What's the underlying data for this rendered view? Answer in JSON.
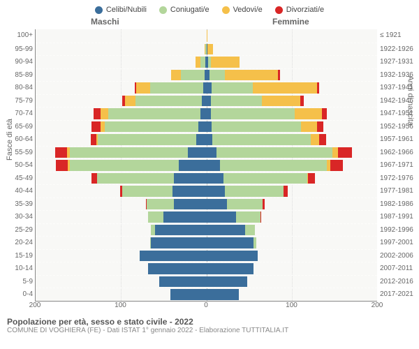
{
  "legend": [
    {
      "label": "Celibi/Nubili",
      "color": "#3b6e9b"
    },
    {
      "label": "Coniugati/e",
      "color": "#b3d69b"
    },
    {
      "label": "Vedovi/e",
      "color": "#f5c04a"
    },
    {
      "label": "Divorziati/e",
      "color": "#d92626"
    }
  ],
  "headers": {
    "male": "Maschi",
    "female": "Femmine"
  },
  "axis": {
    "left_title": "Fasce di età",
    "right_title": "Anni di nascita",
    "xmax": 200,
    "xticks": [
      200,
      100,
      0,
      100,
      200
    ],
    "xtick_positions": [
      0,
      25,
      50,
      75,
      100
    ]
  },
  "colors": {
    "celibi": "#3b6e9b",
    "coniugati": "#b3d69b",
    "vedovi": "#f5c04a",
    "divorziati": "#d92626",
    "plot_bg": "#f8f8f6"
  },
  "rows": [
    {
      "age": "100+",
      "birth": "≤ 1921",
      "m": {
        "c": 0,
        "co": 0,
        "v": 0,
        "d": 0
      },
      "f": {
        "c": 0,
        "co": 0,
        "v": 1,
        "d": 0
      }
    },
    {
      "age": "95-99",
      "birth": "1922-1926",
      "m": {
        "c": 0,
        "co": 1,
        "v": 1,
        "d": 0
      },
      "f": {
        "c": 1,
        "co": 0,
        "v": 7,
        "d": 0
      }
    },
    {
      "age": "90-94",
      "birth": "1927-1931",
      "m": {
        "c": 1,
        "co": 6,
        "v": 6,
        "d": 0
      },
      "f": {
        "c": 2,
        "co": 3,
        "v": 34,
        "d": 0
      }
    },
    {
      "age": "85-89",
      "birth": "1932-1936",
      "m": {
        "c": 2,
        "co": 28,
        "v": 11,
        "d": 0
      },
      "f": {
        "c": 4,
        "co": 18,
        "v": 62,
        "d": 2
      }
    },
    {
      "age": "80-84",
      "birth": "1937-1941",
      "m": {
        "c": 4,
        "co": 62,
        "v": 16,
        "d": 2
      },
      "f": {
        "c": 6,
        "co": 48,
        "v": 75,
        "d": 3
      }
    },
    {
      "age": "75-79",
      "birth": "1942-1946",
      "m": {
        "c": 5,
        "co": 78,
        "v": 12,
        "d": 3
      },
      "f": {
        "c": 5,
        "co": 60,
        "v": 45,
        "d": 4
      }
    },
    {
      "age": "70-74",
      "birth": "1947-1951",
      "m": {
        "c": 7,
        "co": 108,
        "v": 9,
        "d": 8
      },
      "f": {
        "c": 5,
        "co": 98,
        "v": 32,
        "d": 6
      }
    },
    {
      "age": "65-69",
      "birth": "1952-1956",
      "m": {
        "c": 9,
        "co": 110,
        "v": 5,
        "d": 10
      },
      "f": {
        "c": 6,
        "co": 105,
        "v": 18,
        "d": 8
      }
    },
    {
      "age": "60-64",
      "birth": "1957-1961",
      "m": {
        "c": 12,
        "co": 115,
        "v": 2,
        "d": 6
      },
      "f": {
        "c": 7,
        "co": 115,
        "v": 10,
        "d": 8
      }
    },
    {
      "age": "55-59",
      "birth": "1962-1966",
      "m": {
        "c": 22,
        "co": 138,
        "v": 3,
        "d": 14
      },
      "f": {
        "c": 12,
        "co": 135,
        "v": 7,
        "d": 16
      }
    },
    {
      "age": "50-54",
      "birth": "1967-1971",
      "m": {
        "c": 32,
        "co": 128,
        "v": 2,
        "d": 14
      },
      "f": {
        "c": 16,
        "co": 125,
        "v": 4,
        "d": 15
      }
    },
    {
      "age": "45-49",
      "birth": "1972-1976",
      "m": {
        "c": 38,
        "co": 90,
        "v": 0,
        "d": 6
      },
      "f": {
        "c": 20,
        "co": 98,
        "v": 1,
        "d": 8
      }
    },
    {
      "age": "40-44",
      "birth": "1977-1981",
      "m": {
        "c": 40,
        "co": 58,
        "v": 0,
        "d": 3
      },
      "f": {
        "c": 22,
        "co": 68,
        "v": 0,
        "d": 5
      }
    },
    {
      "age": "35-39",
      "birth": "1982-1986",
      "m": {
        "c": 38,
        "co": 32,
        "v": 0,
        "d": 1
      },
      "f": {
        "c": 24,
        "co": 42,
        "v": 0,
        "d": 2
      }
    },
    {
      "age": "30-34",
      "birth": "1987-1991",
      "m": {
        "c": 50,
        "co": 18,
        "v": 0,
        "d": 0
      },
      "f": {
        "c": 35,
        "co": 28,
        "v": 0,
        "d": 1
      }
    },
    {
      "age": "25-29",
      "birth": "1992-1996",
      "m": {
        "c": 60,
        "co": 5,
        "v": 0,
        "d": 0
      },
      "f": {
        "c": 45,
        "co": 12,
        "v": 0,
        "d": 0
      }
    },
    {
      "age": "20-24",
      "birth": "1997-2001",
      "m": {
        "c": 65,
        "co": 1,
        "v": 0,
        "d": 0
      },
      "f": {
        "c": 55,
        "co": 3,
        "v": 0,
        "d": 0
      }
    },
    {
      "age": "15-19",
      "birth": "2002-2006",
      "m": {
        "c": 78,
        "co": 0,
        "v": 0,
        "d": 0
      },
      "f": {
        "c": 60,
        "co": 0,
        "v": 0,
        "d": 0
      }
    },
    {
      "age": "10-14",
      "birth": "2007-2011",
      "m": {
        "c": 68,
        "co": 0,
        "v": 0,
        "d": 0
      },
      "f": {
        "c": 55,
        "co": 0,
        "v": 0,
        "d": 0
      }
    },
    {
      "age": "5-9",
      "birth": "2012-2016",
      "m": {
        "c": 55,
        "co": 0,
        "v": 0,
        "d": 0
      },
      "f": {
        "c": 48,
        "co": 0,
        "v": 0,
        "d": 0
      }
    },
    {
      "age": "0-4",
      "birth": "2017-2021",
      "m": {
        "c": 42,
        "co": 0,
        "v": 0,
        "d": 0
      },
      "f": {
        "c": 38,
        "co": 0,
        "v": 0,
        "d": 0
      }
    }
  ],
  "footer": {
    "title": "Popolazione per età, sesso e stato civile - 2022",
    "sub": "COMUNE DI VOGHIERA (FE) - Dati ISTAT 1° gennaio 2022 - Elaborazione TUTTITALIA.IT"
  }
}
